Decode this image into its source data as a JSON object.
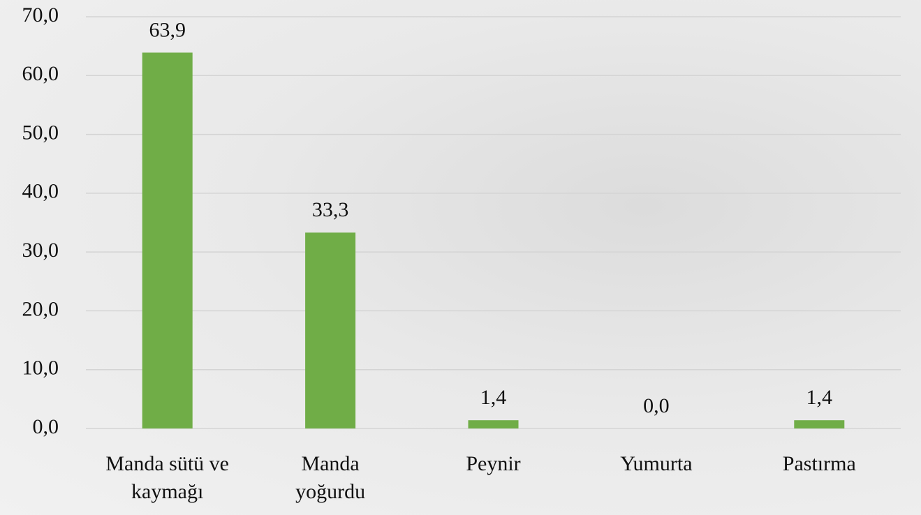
{
  "chart_data": {
    "type": "bar",
    "categories": [
      "Manda sütü ve kaymağı",
      "Manda yoğurdu",
      "Peynir",
      "Yumurta",
      "Pastırma"
    ],
    "values": [
      63.9,
      33.3,
      1.4,
      0.0,
      1.4
    ],
    "value_labels": [
      "63,9",
      "33,3",
      "1,4",
      "0,0",
      "1,4"
    ],
    "color": "#70ad47",
    "ylim": [
      0,
      70
    ],
    "yticks": [
      {
        "value": 0,
        "label": "0,0"
      },
      {
        "value": 10,
        "label": "10,0"
      },
      {
        "value": 20,
        "label": "20,0"
      },
      {
        "value": 30,
        "label": "30,0"
      },
      {
        "value": 40,
        "label": "40,0"
      },
      {
        "value": 50,
        "label": "50,0"
      },
      {
        "value": 60,
        "label": "60,0"
      },
      {
        "value": 70,
        "label": "70,0"
      }
    ],
    "grid": true
  }
}
